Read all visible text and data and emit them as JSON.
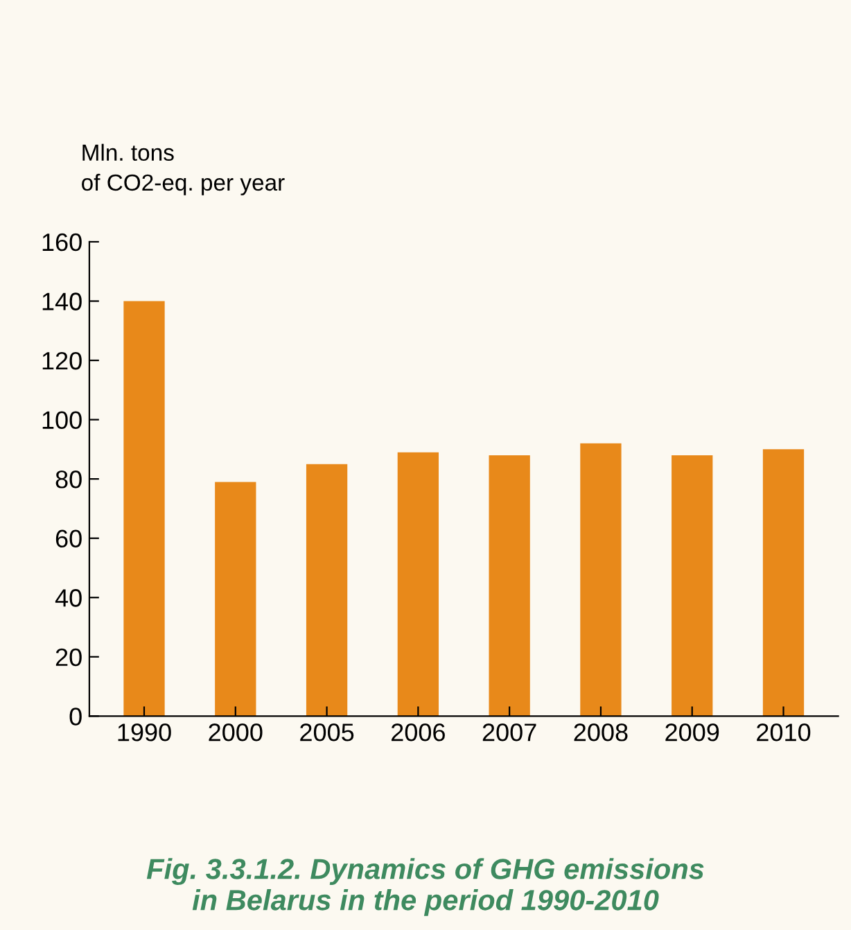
{
  "chart_data": {
    "type": "bar",
    "title": "Fig. 3.3.1.2. Dynamics of GHG emissions\nin Belarus in the period 1990-2010",
    "ylabel": "Mln. tons\nof CO2-eq. per year",
    "categories": [
      "1990",
      "2000",
      "2005",
      "2006",
      "2007",
      "2008",
      "2009",
      "2010"
    ],
    "values": [
      140,
      79,
      85,
      89,
      88,
      92,
      88,
      90
    ],
    "color": "#e8891a",
    "ylim": [
      0,
      160
    ],
    "yticks": [
      0,
      20,
      40,
      60,
      80,
      100,
      120,
      140,
      160
    ],
    "grid": false
  }
}
